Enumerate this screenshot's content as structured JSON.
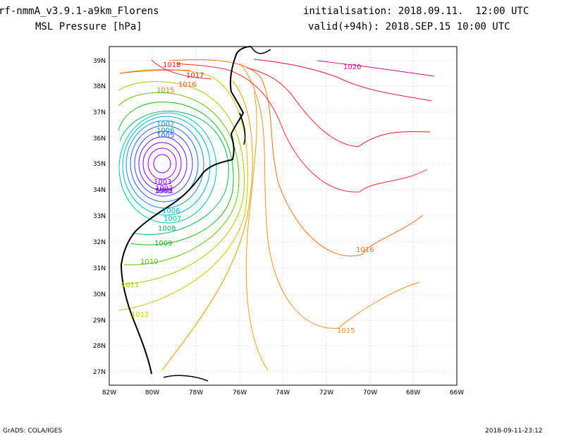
{
  "header": {
    "model": "rf-nmmA_v3.9.1-a9km_Florens",
    "field": "MSL Pressure [hPa]",
    "init": "initialisation: 2018.09.11.  12:00 UTC",
    "valid": "valid(+94h): 2018.SEP.15 10:00 UTC"
  },
  "axes": {
    "lat_labels": [
      "39N",
      "38N",
      "37N",
      "36N",
      "35N",
      "34N",
      "33N",
      "32N",
      "31N",
      "30N",
      "29N",
      "28N",
      "27N"
    ],
    "lon_labels": [
      "82W",
      "80W",
      "78W",
      "76W",
      "74W",
      "72W",
      "70W",
      "68W",
      "66W"
    ]
  },
  "contour_labels": [
    "1018",
    "1017",
    "1016",
    "1015",
    "1020",
    "1007",
    "1006",
    "1005",
    "1003",
    "1002",
    "1001",
    "1002",
    "1006",
    "1007",
    "1008",
    "1009",
    "1010",
    "1011",
    "1012",
    "1016",
    "1015"
  ],
  "footer": {
    "left": "GrADS: COLA/IGES",
    "right": "2018-09-11-23:12"
  }
}
